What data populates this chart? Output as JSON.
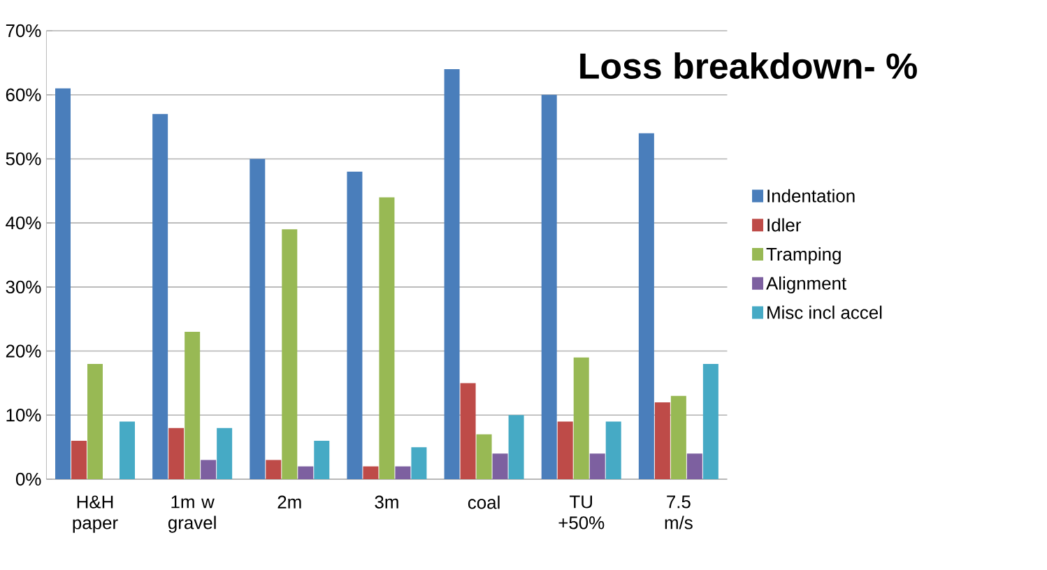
{
  "chart_data": {
    "type": "bar",
    "title": "Loss breakdown- %",
    "categories": [
      "H&H paper",
      "1m w gravel",
      "2m",
      "3m",
      "coal",
      "TU +50%",
      "7.5 m/s"
    ],
    "series": [
      {
        "name": "Indentation",
        "color": "#4a7ebb",
        "values": [
          61,
          57,
          50,
          48,
          64,
          60,
          54
        ]
      },
      {
        "name": "Idler",
        "color": "#be4b48",
        "values": [
          6,
          8,
          3,
          2,
          15,
          9,
          12
        ]
      },
      {
        "name": "Tramping",
        "color": "#98b954",
        "values": [
          18,
          23,
          39,
          44,
          7,
          19,
          13
        ]
      },
      {
        "name": "Alignment",
        "color": "#7d60a0",
        "values": [
          null,
          3,
          2,
          2,
          4,
          4,
          4
        ]
      },
      {
        "name": "Misc incl accel",
        "color": "#46aac5",
        "values": [
          9,
          8,
          6,
          5,
          10,
          9,
          18
        ]
      }
    ],
    "ylim": [
      0,
      70
    ],
    "yticks": [
      {
        "value": 0,
        "label": "0%"
      },
      {
        "value": 10,
        "label": "10%"
      },
      {
        "value": 20,
        "label": "20%"
      },
      {
        "value": 30,
        "label": "30%"
      },
      {
        "value": 40,
        "label": "40%"
      },
      {
        "value": 50,
        "label": "50%"
      },
      {
        "value": 60,
        "label": "60%"
      },
      {
        "value": 70,
        "label": "70%"
      }
    ],
    "grid": "y",
    "legend": "right"
  }
}
